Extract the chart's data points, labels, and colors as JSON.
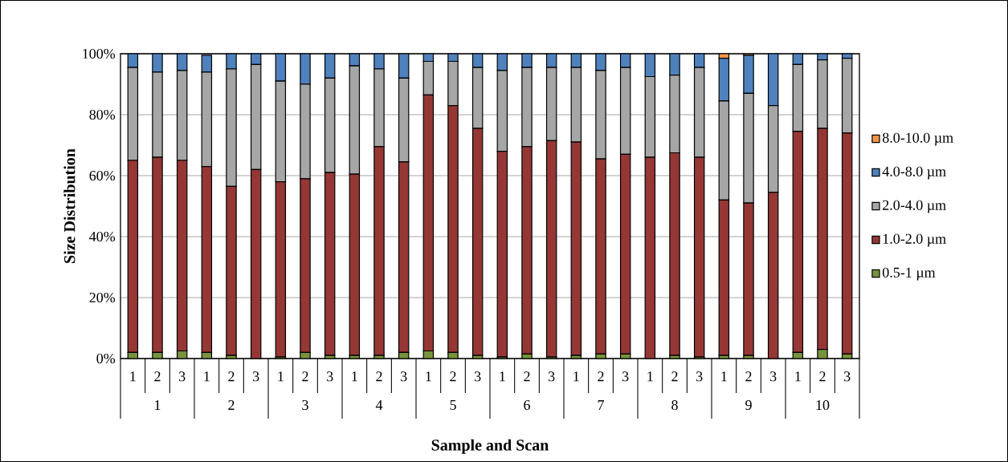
{
  "chart_data": {
    "type": "bar",
    "stacked": true,
    "xlabel": "Sample and Scan",
    "ylabel": "Size Distribution",
    "categories": [
      "1",
      "2",
      "3",
      "1",
      "2",
      "3",
      "1",
      "2",
      "3",
      "1",
      "2",
      "3",
      "1",
      "2",
      "3",
      "1",
      "2",
      "3",
      "1",
      "2",
      "3",
      "1",
      "2",
      "3",
      "1",
      "2",
      "3",
      "1",
      "2",
      "3"
    ],
    "annotations": [
      "1",
      "2",
      "3",
      "4",
      "5",
      "6",
      "7",
      "8",
      "9",
      "10"
    ],
    "ylim": [
      0,
      100
    ],
    "yticks": [
      {
        "value": 0,
        "label": "0%"
      },
      {
        "value": 20,
        "label": "20%"
      },
      {
        "value": 40,
        "label": "40%"
      },
      {
        "value": 60,
        "label": "60%"
      },
      {
        "value": 80,
        "label": "80%"
      },
      {
        "value": 100,
        "label": "100%"
      }
    ],
    "grid": "y",
    "legend": "right",
    "series": [
      {
        "name": "0.5-1 µm",
        "color": "#77933c",
        "values": [
          2,
          2,
          2.5,
          2,
          1,
          0,
          0.5,
          2,
          1,
          1,
          1,
          2,
          2.5,
          2,
          1,
          0.5,
          1.5,
          0.5,
          1,
          1.5,
          1.5,
          0,
          1,
          0.5,
          1,
          1,
          0,
          2,
          3,
          1.5
        ]
      },
      {
        "name": "1.0-2.0 µm",
        "color": "#953735",
        "values": [
          63,
          64,
          62.5,
          61,
          55.5,
          62,
          57.5,
          57,
          60,
          59.5,
          68.5,
          62.5,
          84,
          81,
          74.5,
          67.5,
          68,
          71,
          70,
          64,
          65.5,
          66,
          66.5,
          65.5,
          51,
          50,
          54.5,
          72.5,
          72.5,
          72.5
        ]
      },
      {
        "name": "2.0-4.0 µm",
        "color": "#a6a6a6",
        "values": [
          30.5,
          28,
          29.5,
          31,
          38.5,
          34.5,
          33,
          31,
          31,
          35.5,
          25.5,
          27.5,
          11,
          14.5,
          20,
          26.5,
          26,
          24,
          24.5,
          29,
          28.5,
          26.5,
          25.5,
          29.5,
          32.5,
          36,
          28.5,
          22,
          22.5,
          24.5
        ]
      },
      {
        "name": "4.0-8.0 µm",
        "color": "#4f81bd",
        "values": [
          4.5,
          6,
          5.5,
          5.5,
          5,
          3.5,
          9,
          10,
          8,
          4,
          5,
          8,
          2.5,
          2.5,
          4.5,
          5.5,
          4.5,
          4.5,
          4.5,
          5.5,
          4.5,
          7.5,
          7,
          4.5,
          14,
          12.5,
          17,
          3.5,
          2,
          1.5
        ]
      },
      {
        "name": "8.0-10.0 µm",
        "color": "#f79646",
        "values": [
          null,
          null,
          null,
          null,
          null,
          null,
          null,
          null,
          null,
          null,
          null,
          null,
          null,
          null,
          null,
          null,
          null,
          null,
          null,
          null,
          null,
          null,
          null,
          null,
          1.5,
          0.5,
          null,
          null,
          null,
          null
        ]
      }
    ]
  }
}
